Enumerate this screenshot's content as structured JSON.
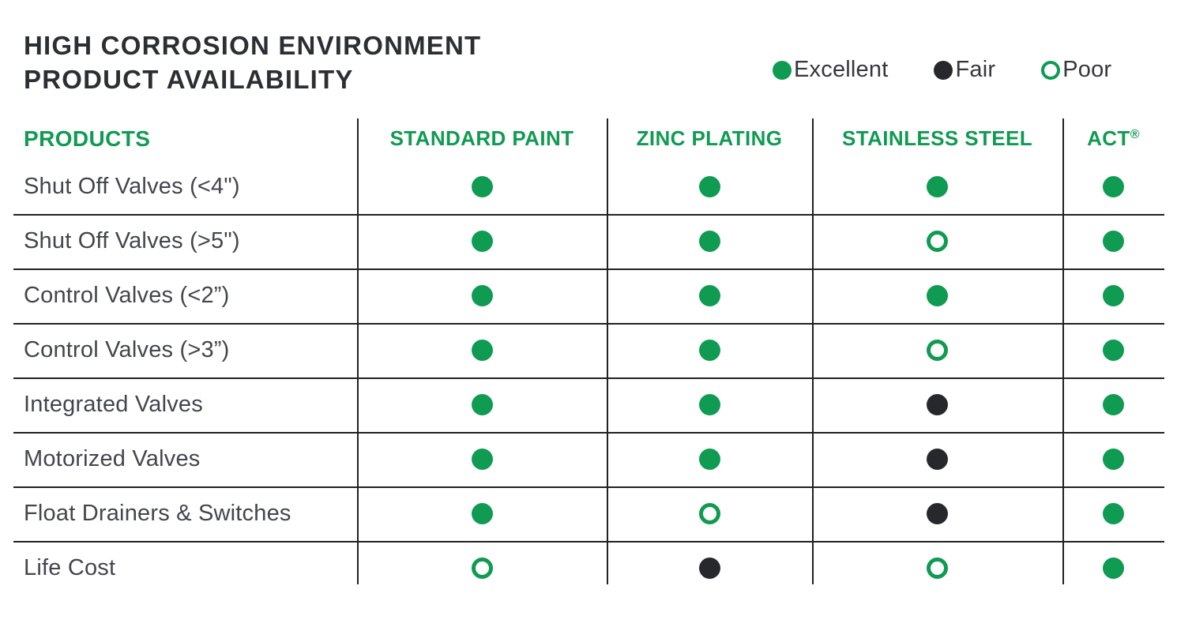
{
  "title": {
    "line1": "HIGH CORROSION ENVIRONMENT",
    "line2": "PRODUCT AVAILABILITY"
  },
  "legend": [
    {
      "label": "Excellent",
      "rating": "excellent",
      "symbol": "filled-circle",
      "color": "#0F9B51"
    },
    {
      "label": "Fair",
      "rating": "fair",
      "symbol": "filled-circle",
      "color": "#26282C"
    },
    {
      "label": "Poor",
      "rating": "poor",
      "symbol": "outlined-circle",
      "color": "#0F9B51"
    }
  ],
  "colors": {
    "green": "#0F9B51",
    "black": "#26282C",
    "title": "#2B2E33",
    "label": "#42464C",
    "line": "#202124"
  },
  "chart_data": {
    "type": "table",
    "title": "HIGH CORROSION ENVIRONMENT PRODUCT AVAILABILITY",
    "row_header": "PRODUCTS",
    "columns": [
      {
        "label": "STANDARD PAINT",
        "sup": ""
      },
      {
        "label": "ZINC PLATING",
        "sup": ""
      },
      {
        "label": "STAINLESS STEEL",
        "sup": ""
      },
      {
        "label": "ACT",
        "sup": "®"
      }
    ],
    "rating_scale": {
      "excellent": "Excellent",
      "fair": "Fair",
      "poor": "Poor"
    },
    "rows": [
      {
        "label": "Shut Off Valves (<4\")",
        "ratings": [
          "excellent",
          "excellent",
          "excellent",
          "excellent"
        ]
      },
      {
        "label": "Shut Off Valves (>5\")",
        "ratings": [
          "excellent",
          "excellent",
          "poor",
          "excellent"
        ]
      },
      {
        "label": "Control Valves (<2”)",
        "ratings": [
          "excellent",
          "excellent",
          "excellent",
          "excellent"
        ]
      },
      {
        "label": "Control Valves (>3”)",
        "ratings": [
          "excellent",
          "excellent",
          "poor",
          "excellent"
        ]
      },
      {
        "label": "Integrated Valves",
        "ratings": [
          "excellent",
          "excellent",
          "fair",
          "excellent"
        ]
      },
      {
        "label": "Motorized Valves",
        "ratings": [
          "excellent",
          "excellent",
          "fair",
          "excellent"
        ]
      },
      {
        "label": "Float Drainers & Switches",
        "ratings": [
          "excellent",
          "poor",
          "fair",
          "excellent"
        ]
      },
      {
        "label": "Life Cost",
        "ratings": [
          "poor",
          "fair",
          "poor",
          "excellent"
        ]
      }
    ]
  }
}
